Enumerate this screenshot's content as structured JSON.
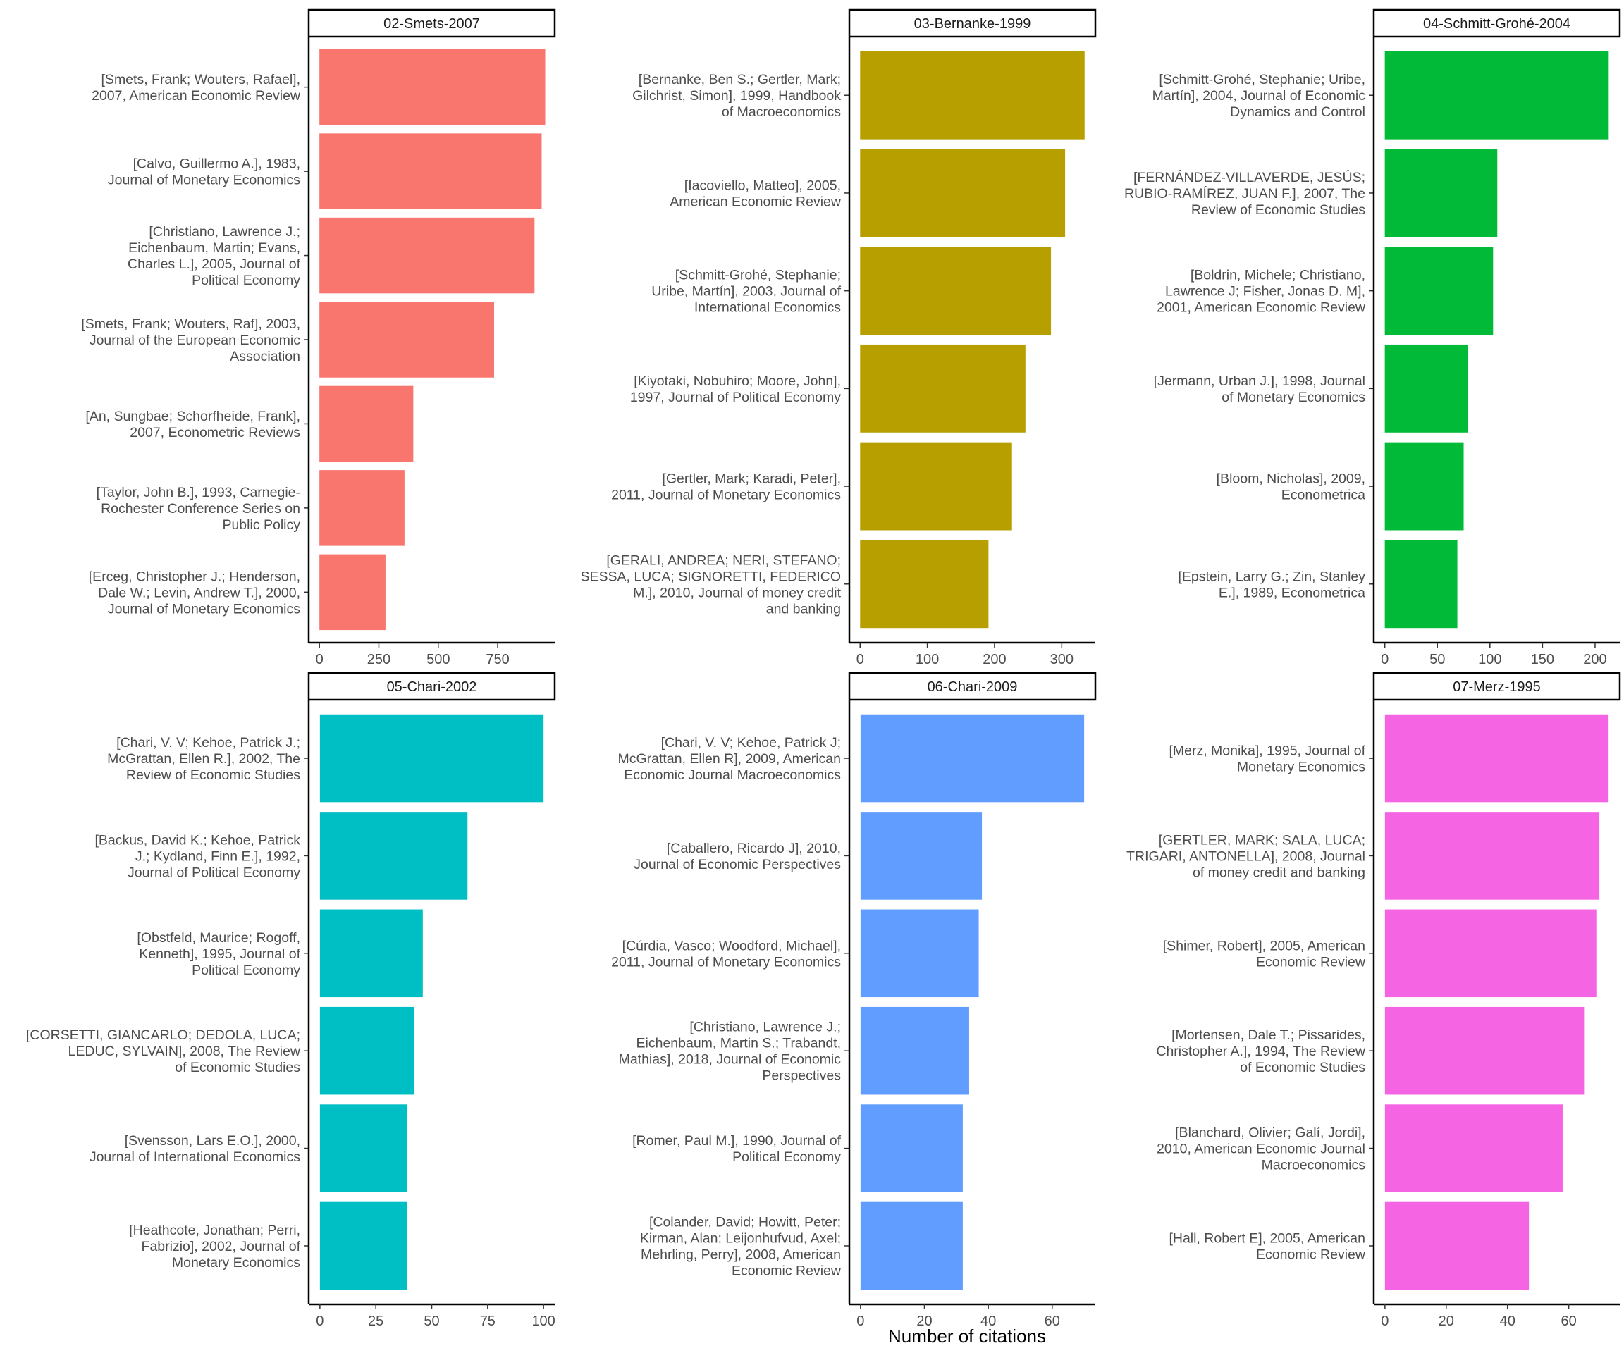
{
  "xlabel": "Number of citations",
  "chart_data": [
    {
      "type": "bar",
      "title": "02-Smets-2007",
      "color": "#F8766D",
      "categories": [
        "[Smets, Frank; Wouters, Rafael], 2007, American Economic Review",
        "[Calvo, Guillermo A.], 1983, Journal of Monetary Economics",
        "[Christiano, Lawrence J.; Eichenbaum, Martin; Evans, Charles L.], 2005, Journal of Political Economy",
        "[Smets, Frank; Wouters, Raf], 2003, Journal of the European Economic Association",
        "[An, Sungbae; Schorfheide, Frank], 2007, Econometric Reviews",
        "[Taylor, John B.], 1993, Carnegie-Rochester Conference Series on Public Policy",
        "[Erceg, Christopher J.; Henderson, Dale W.; Levin, Andrew T.], 2000, Journal of Monetary Economics"
      ],
      "label_lines": [
        [
          "[Smets, Frank; Wouters, Rafael],",
          "2007, American Economic Review"
        ],
        [
          "[Calvo, Guillermo A.], 1983,",
          "Journal of Monetary Economics"
        ],
        [
          "[Christiano, Lawrence J.;",
          "Eichenbaum, Martin; Evans,",
          "Charles L.], 2005, Journal of",
          "Political Economy"
        ],
        [
          "[Smets, Frank; Wouters, Raf], 2003,",
          "Journal of the European Economic",
          "Association"
        ],
        [
          "[An, Sungbae; Schorfheide, Frank],",
          "2007, Econometric Reviews"
        ],
        [
          "[Taylor, John B.], 1993, Carnegie-",
          "Rochester Conference Series on",
          "Public Policy"
        ],
        [
          "[Erceg, Christopher J.; Henderson,",
          "Dale W.; Levin, Andrew T.], 2000,",
          "Journal of Monetary Economics"
        ]
      ],
      "values": [
        950,
        935,
        905,
        735,
        395,
        358,
        278
      ],
      "xlim": [
        -45,
        990
      ],
      "xticks": [
        0,
        250,
        500,
        750
      ]
    },
    {
      "type": "bar",
      "title": "03-Bernanke-1999",
      "color": "#B79F00",
      "categories": [
        "[Bernanke, Ben S.; Gertler, Mark; Gilchrist, Simon], 1999, Handbook of Macroeconomics",
        "[Iacoviello, Matteo], 2005, American Economic Review",
        "[Schmitt-Grohé, Stephanie; Uribe, Martín], 2003, Journal of International Economics",
        "[Kiyotaki, Nobuhiro; Moore, John], 1997, Journal of Political Economy",
        "[Gertler, Mark; Karadi, Peter], 2011, Journal of Monetary Economics",
        "[GERALI, ANDREA; NERI, STEFANO; SESSA, LUCA; SIGNORETTI, FEDERICO M.], 2010, Journal of money credit and banking"
      ],
      "label_lines": [
        [
          "[Bernanke, Ben S.; Gertler, Mark;",
          "Gilchrist, Simon], 1999, Handbook",
          "of Macroeconomics"
        ],
        [
          "[Iacoviello, Matteo], 2005,",
          "American Economic Review"
        ],
        [
          "[Schmitt-Grohé, Stephanie;",
          "Uribe, Martín], 2003, Journal of",
          "International Economics"
        ],
        [
          "[Kiyotaki, Nobuhiro; Moore, John],",
          "1997, Journal of Political Economy"
        ],
        [
          "[Gertler, Mark; Karadi, Peter],",
          "2011, Journal of Monetary Economics"
        ],
        [
          "[GERALI, ANDREA; NERI, STEFANO;",
          "SESSA, LUCA; SIGNORETTI, FEDERICO",
          "M.], 2010, Journal of money credit",
          "and banking"
        ]
      ],
      "values": [
        334,
        305,
        284,
        246,
        226,
        191
      ],
      "xlim": [
        -16,
        350
      ],
      "xticks": [
        0,
        100,
        200,
        300
      ]
    },
    {
      "type": "bar",
      "title": "04-Schmitt-Grohé-2004",
      "color": "#00BA38",
      "categories": [
        "[Schmitt-Grohé, Stephanie; Uribe, Martín], 2004, Journal of Economic Dynamics and Control",
        "[FERNÁNDEZ-VILLAVERDE, JESÚS; RUBIO-RAMÍREZ, JUAN F.], 2007, The Review of Economic Studies",
        "[Boldrin, Michele; Christiano, Lawrence J; Fisher, Jonas D. M], 2001, American Economic Review",
        "[Jermann, Urban J.], 1998, Journal of Monetary Economics",
        "[Bloom, Nicholas], 2009, Econometrica",
        "[Epstein, Larry G.; Zin, Stanley E.], 1989, Econometrica"
      ],
      "label_lines": [
        [
          "[Schmitt-Grohé, Stephanie; Uribe,",
          "Martín], 2004, Journal of Economic",
          "Dynamics and Control"
        ],
        [
          "[FERNÁNDEZ-VILLAVERDE, JESÚS;",
          "RUBIO-RAMÍREZ, JUAN F.], 2007, The",
          "Review of Economic Studies"
        ],
        [
          "[Boldrin, Michele; Christiano,",
          "Lawrence J; Fisher, Jonas D. M],",
          "2001, American Economic Review"
        ],
        [
          "[Jermann, Urban J.], 1998, Journal",
          "of Monetary Economics"
        ],
        [
          "[Bloom, Nicholas], 2009,",
          "Econometrica"
        ],
        [
          "[Epstein, Larry G.; Zin, Stanley",
          "E.], 1989, Econometrica"
        ]
      ],
      "values": [
        213,
        107,
        103,
        79,
        75,
        69
      ],
      "xlim": [
        -10.5,
        223.5
      ],
      "xticks": [
        0,
        50,
        100,
        150,
        200
      ]
    },
    {
      "type": "bar",
      "title": "05-Chari-2002",
      "color": "#00BFC4",
      "categories": [
        "[Chari, V. V; Kehoe, Patrick J.; McGrattan, Ellen R.], 2002, The Review of Economic Studies",
        "[Backus, David K.; Kehoe, Patrick J.; Kydland, Finn E.], 1992, Journal of Political Economy",
        "[Obstfeld, Maurice; Rogoff, Kenneth], 1995, Journal of Political Economy",
        "[CORSETTI, GIANCARLO; DEDOLA, LUCA; LEDUC, SYLVAIN], 2008, The Review of Economic Studies",
        "[Svensson, Lars E.O.], 2000, Journal of International Economics",
        "[Heathcote, Jonathan; Perri, Fabrizio], 2002, Journal of Monetary Economics"
      ],
      "label_lines": [
        [
          "[Chari, V. V; Kehoe, Patrick J.;",
          "McGrattan, Ellen R.], 2002, The",
          "Review of Economic Studies"
        ],
        [
          "[Backus, David K.; Kehoe, Patrick",
          "J.; Kydland, Finn E.], 1992,",
          "Journal of Political Economy"
        ],
        [
          "[Obstfeld, Maurice; Rogoff,",
          "Kenneth], 1995, Journal of",
          "Political Economy"
        ],
        [
          "[CORSETTI, GIANCARLO; DEDOLA, LUCA;",
          "LEDUC, SYLVAIN], 2008, The Review",
          "of Economic Studies"
        ],
        [
          "[Svensson, Lars E.O.], 2000,",
          "Journal of International Economics"
        ],
        [
          "[Heathcote, Jonathan; Perri,",
          "Fabrizio], 2002, Journal of",
          "Monetary Economics"
        ]
      ],
      "values": [
        100,
        66,
        46,
        42,
        39,
        39
      ],
      "xlim": [
        -5,
        105
      ],
      "xticks": [
        0,
        25,
        50,
        75,
        100
      ]
    },
    {
      "type": "bar",
      "title": "06-Chari-2009",
      "color": "#619CFF",
      "categories": [
        "[Chari, V. V; Kehoe, Patrick J; McGrattan, Ellen R], 2009, American Economic Journal Macroeconomics",
        "[Caballero, Ricardo J], 2010, Journal of Economic Perspectives",
        "[Cúrdia, Vasco; Woodford, Michael], 2011, Journal of Monetary Economics",
        "[Christiano, Lawrence J.; Eichenbaum, Martin S.; Trabandt, Mathias], 2018, Journal of Economic Perspectives",
        "[Romer, Paul M.], 1990, Journal of Political Economy",
        "[Colander, David; Howitt, Peter; Kirman, Alan; Leijonhufvud, Axel; Mehrling, Perry], 2008, American Economic Review"
      ],
      "label_lines": [
        [
          "[Chari, V. V; Kehoe, Patrick J;",
          "McGrattan, Ellen R], 2009, American",
          "Economic Journal Macroeconomics"
        ],
        [
          "[Caballero, Ricardo J], 2010,",
          "Journal of Economic Perspectives"
        ],
        [
          "[Cúrdia, Vasco; Woodford, Michael],",
          "2011, Journal of Monetary Economics"
        ],
        [
          "[Christiano, Lawrence J.;",
          "Eichenbaum, Martin S.; Trabandt,",
          "Mathias], 2018, Journal of Economic",
          "Perspectives"
        ],
        [
          "[Romer, Paul M.], 1990, Journal of",
          "Political Economy"
        ],
        [
          "[Colander, David; Howitt, Peter;",
          "Kirman, Alan; Leijonhufvud, Axel;",
          "Mehrling, Perry], 2008, American",
          "Economic Review"
        ]
      ],
      "values": [
        70,
        38,
        37,
        34,
        32,
        32
      ],
      "xlim": [
        -3.5,
        73.5
      ],
      "xticks": [
        0,
        20,
        40,
        60
      ]
    },
    {
      "type": "bar",
      "title": "07-Merz-1995",
      "color": "#F564E3",
      "categories": [
        "[Merz, Monika], 1995, Journal of Monetary Economics",
        "[GERTLER, MARK; SALA, LUCA; TRIGARI, ANTONELLA], 2008, Journal of money credit and banking",
        "[Shimer, Robert], 2005, American Economic Review",
        "[Mortensen, Dale T.; Pissarides, Christopher A.], 1994, The Review of Economic Studies",
        "[Blanchard, Olivier; Galí, Jordi], 2010, American Economic Journal Macroeconomics",
        "[Hall, Robert E], 2005, American Economic Review"
      ],
      "label_lines": [
        [
          "[Merz, Monika], 1995, Journal of",
          "Monetary Economics"
        ],
        [
          "[GERTLER, MARK; SALA, LUCA;",
          "TRIGARI, ANTONELLA], 2008, Journal",
          "of money credit and banking"
        ],
        [
          "[Shimer, Robert], 2005, American",
          "Economic Review"
        ],
        [
          "[Mortensen, Dale T.; Pissarides,",
          "Christopher A.], 1994, The Review",
          "of Economic Studies"
        ],
        [
          "[Blanchard, Olivier; Galí, Jordi],",
          "2010, American Economic Journal",
          "Macroeconomics"
        ],
        [
          "[Hall, Robert E], 2005, American",
          "Economic Review"
        ]
      ],
      "values": [
        73,
        70,
        69,
        65,
        58,
        47
      ],
      "xlim": [
        -3.65,
        76.65
      ],
      "xticks": [
        0,
        20,
        40,
        60
      ]
    }
  ]
}
